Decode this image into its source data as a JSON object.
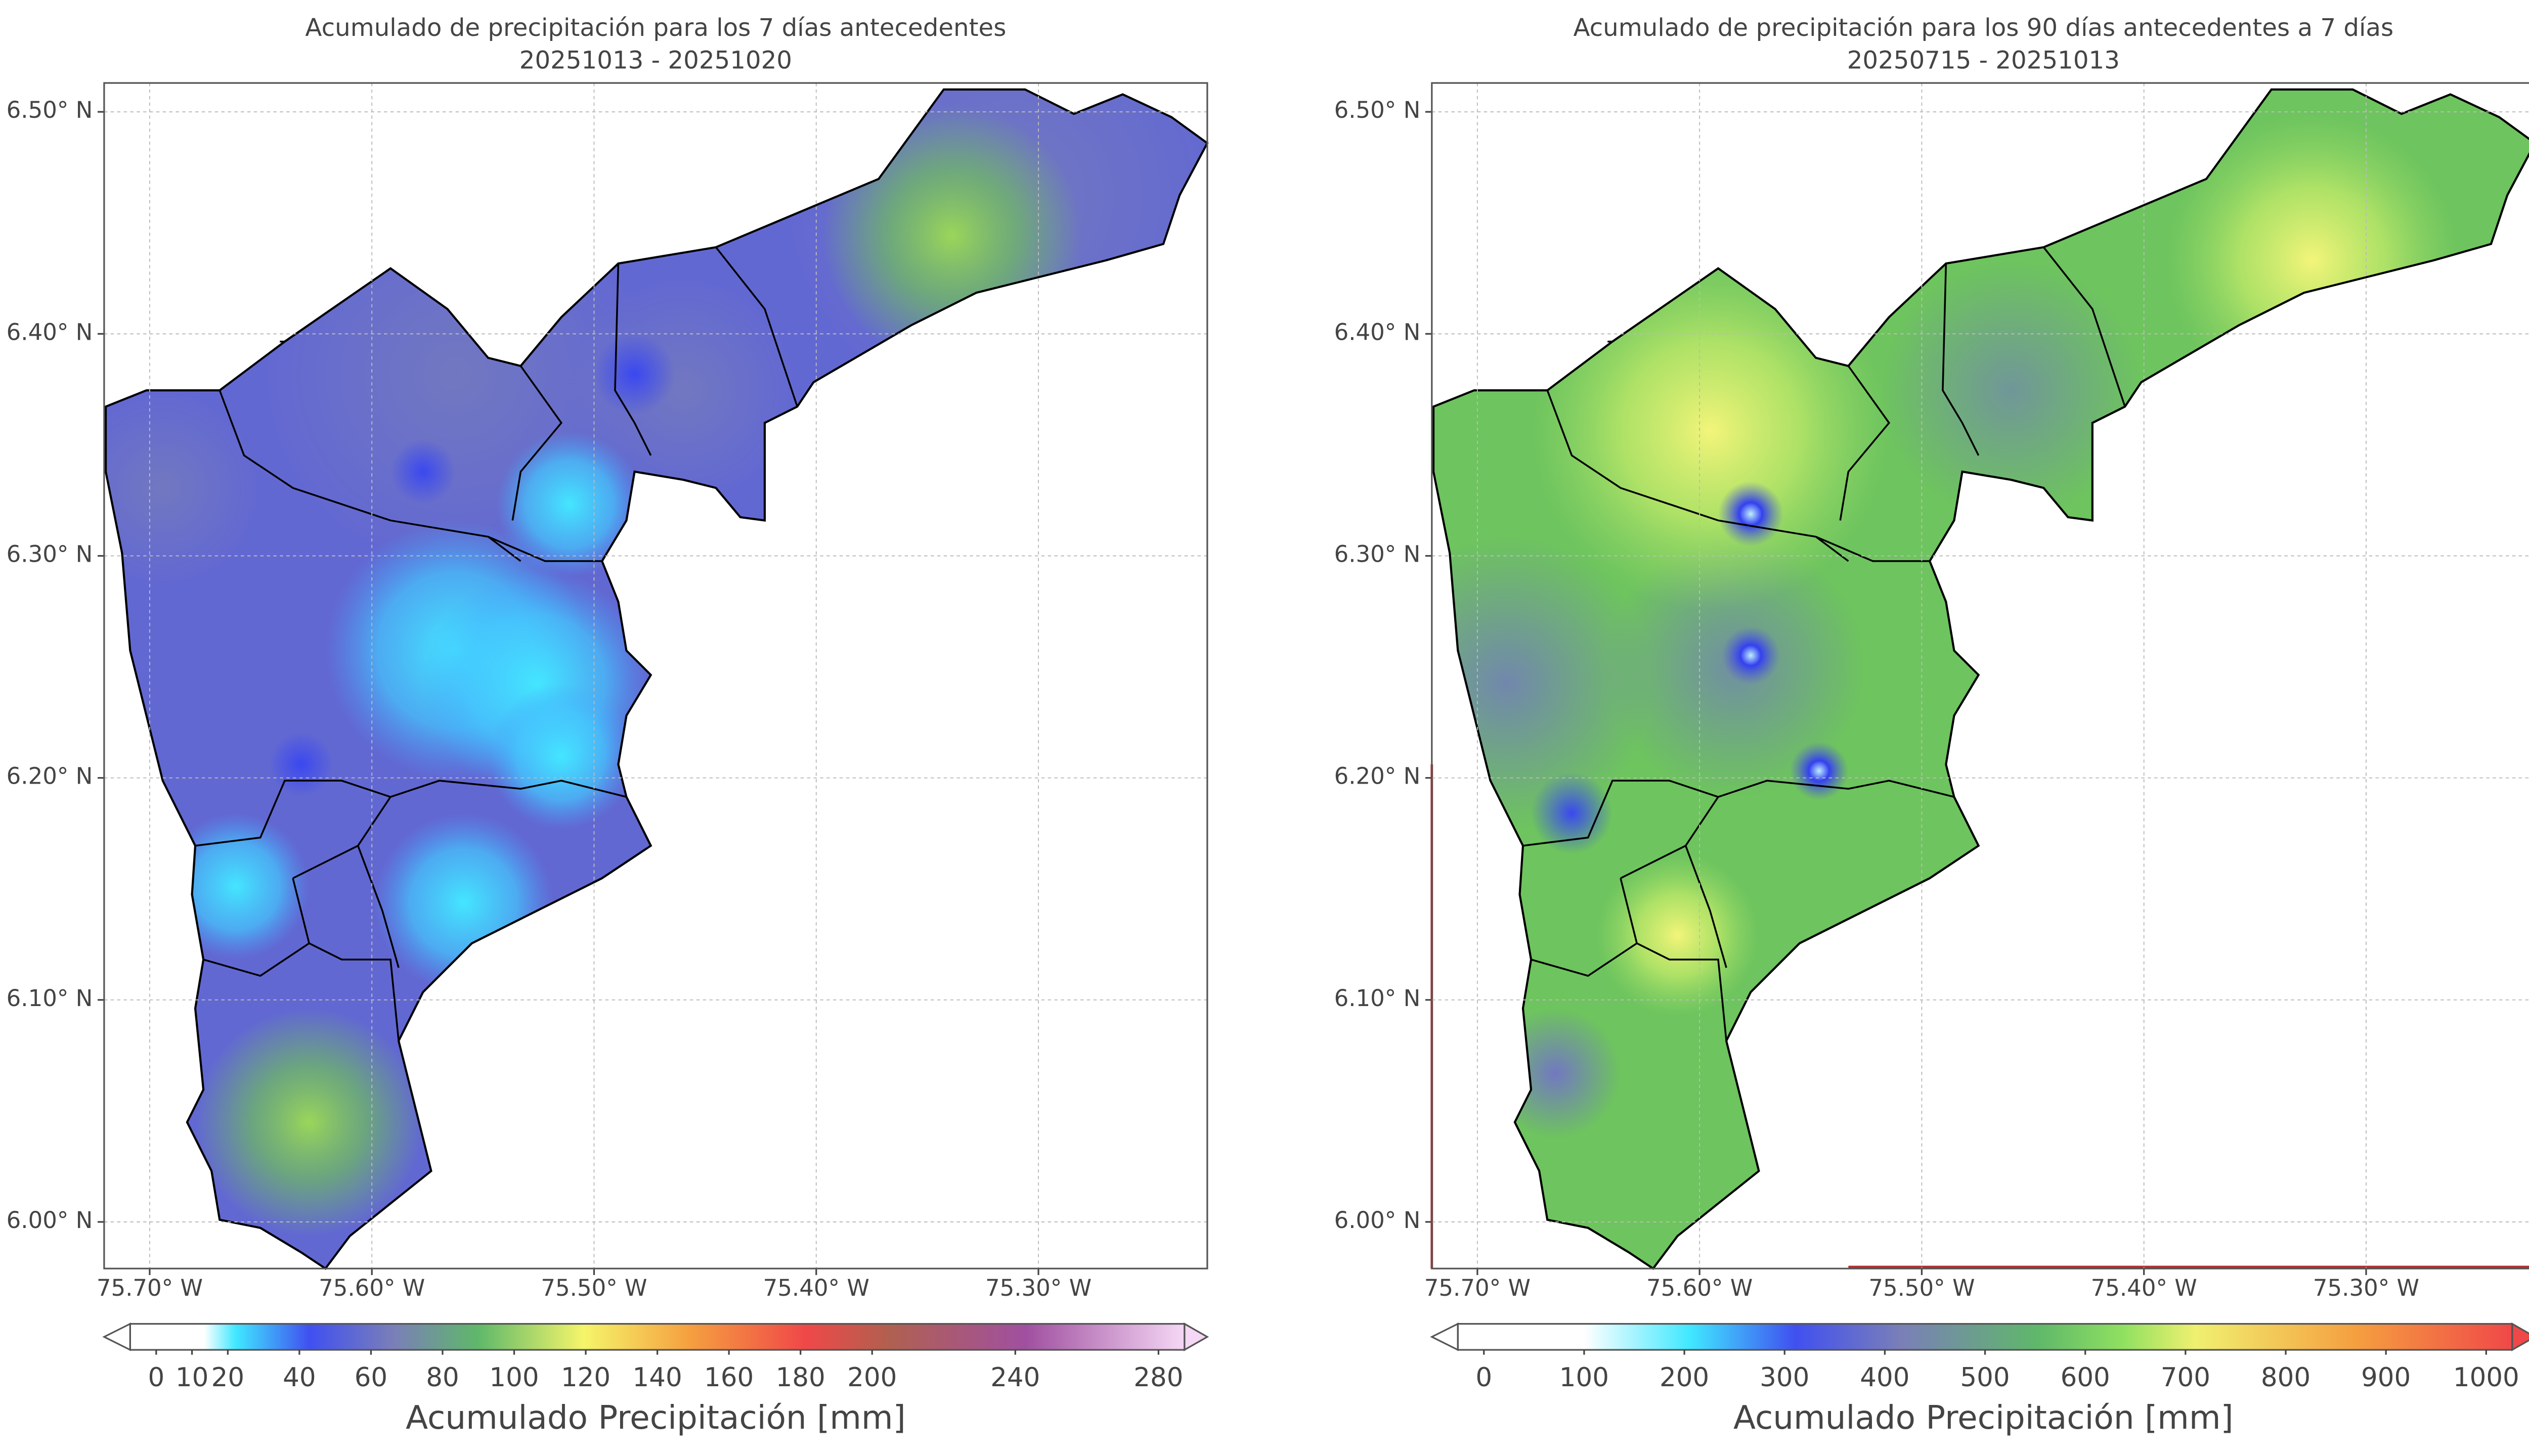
{
  "maps": [
    {
      "title": "Acumulado de precipitación para los 7 días antecedentes",
      "subtitle": "20251013 - 20251020",
      "xlim": [
        -75.7205,
        -75.224
      ],
      "ylim": [
        5.979,
        6.513
      ],
      "xticks": [
        {
          "value": -75.7,
          "label": "75.70° W"
        },
        {
          "value": -75.6,
          "label": "75.60° W"
        },
        {
          "value": -75.5,
          "label": "75.50° W"
        },
        {
          "value": -75.4,
          "label": "75.40° W"
        },
        {
          "value": -75.3,
          "label": "75.30° W"
        }
      ],
      "yticks": [
        {
          "value": 6.0,
          "label": "6.00° N"
        },
        {
          "value": 6.1,
          "label": "6.10° N"
        },
        {
          "value": 6.2,
          "label": "6.20° N"
        },
        {
          "value": 6.3,
          "label": "6.30° N"
        },
        {
          "value": 6.4,
          "label": "6.40° N"
        },
        {
          "value": 6.5,
          "label": "6.50° N"
        }
      ],
      "colorbar": {
        "label": "Acumulado Precipitación [mm]",
        "lim": [
          0,
          280
        ],
        "ticks": [
          0,
          10,
          20,
          40,
          60,
          80,
          100,
          120,
          140,
          160,
          180,
          200,
          240,
          280
        ]
      }
    },
    {
      "title": "Acumulado de precipitación para los 90 días antecedentes a 7 días",
      "subtitle": "20250715 - 20251013",
      "xlim": [
        -75.7205,
        -75.224
      ],
      "ylim": [
        5.979,
        6.513
      ],
      "xticks": [
        {
          "value": -75.7,
          "label": "75.70° W"
        },
        {
          "value": -75.6,
          "label": "75.60° W"
        },
        {
          "value": -75.5,
          "label": "75.50° W"
        },
        {
          "value": -75.4,
          "label": "75.40° W"
        },
        {
          "value": -75.3,
          "label": "75.30° W"
        }
      ],
      "yticks": [
        {
          "value": 6.0,
          "label": "6.00° N"
        },
        {
          "value": 6.1,
          "label": "6.10° N"
        },
        {
          "value": 6.2,
          "label": "6.20° N"
        },
        {
          "value": 6.3,
          "label": "6.30° N"
        },
        {
          "value": 6.4,
          "label": "6.40° N"
        },
        {
          "value": 6.5,
          "label": "6.50° N"
        }
      ],
      "colorbar": {
        "label": "Acumulado Precipitación [mm]",
        "lim": [
          0,
          1000
        ],
        "ticks": [
          0,
          100,
          200,
          300,
          400,
          500,
          600,
          700,
          800,
          900,
          1000
        ]
      }
    }
  ]
}
